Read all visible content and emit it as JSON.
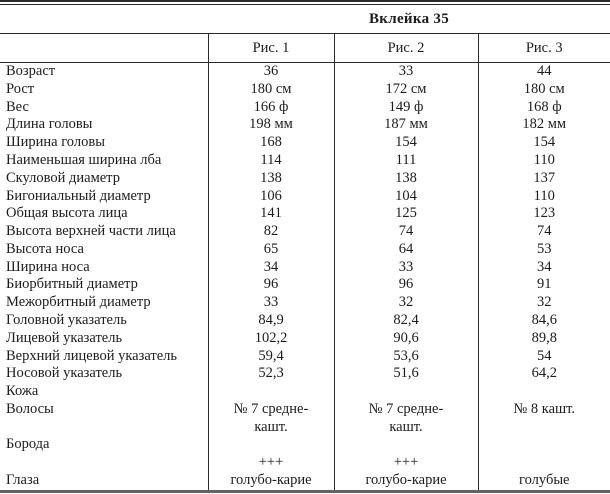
{
  "title": "Вклейка 35",
  "colors": {
    "text": "#1c1c1c",
    "grid_line": "#2b2b2b",
    "bottom_rule": "#636363",
    "background": "#ffffff"
  },
  "table": {
    "col_headers": {
      "fig1": "Рис. 1",
      "fig2": "Рис. 2",
      "fig3": "Рис. 3"
    },
    "rows": [
      {
        "label": "Возраст",
        "fig1": "36",
        "fig2": "33",
        "fig3": "44"
      },
      {
        "label": "Рост",
        "fig1": "180 см",
        "fig2": "172 см",
        "fig3": "180 см"
      },
      {
        "label": "Вес",
        "fig1": "166 ф",
        "fig2": "149 ф",
        "fig3": "168 ф"
      },
      {
        "label": "Длина головы",
        "fig1": "198 мм",
        "fig2": "187 мм",
        "fig3": "182 мм"
      },
      {
        "label": "Ширина головы",
        "fig1": "168",
        "fig2": "154",
        "fig3": "154"
      },
      {
        "label": "Наименьшая ширина лба",
        "fig1": "114",
        "fig2": "111",
        "fig3": "110"
      },
      {
        "label": "Скуловой диаметр",
        "fig1": "138",
        "fig2": "138",
        "fig3": "137"
      },
      {
        "label": "Бигониальный диаметр",
        "fig1": "106",
        "fig2": "104",
        "fig3": "110"
      },
      {
        "label": "Общая высота лица",
        "fig1": "141",
        "fig2": "125",
        "fig3": "123"
      },
      {
        "label": "Высота верхней части лица",
        "fig1": "82",
        "fig2": "74",
        "fig3": "74"
      },
      {
        "label": "Высота носа",
        "fig1": "65",
        "fig2": "64",
        "fig3": "53"
      },
      {
        "label": "Ширина носа",
        "fig1": "34",
        "fig2": "33",
        "fig3": "34"
      },
      {
        "label": "Биорбитный диаметр",
        "fig1": "96",
        "fig2": "96",
        "fig3": "91"
      },
      {
        "label": "Межорбитный диаметр",
        "fig1": "33",
        "fig2": "32",
        "fig3": "32"
      },
      {
        "label": "Головной указатель",
        "fig1": "84,9",
        "fig2": "82,4",
        "fig3": "84,6"
      },
      {
        "label": "Лицевой указатель",
        "fig1": "102,2",
        "fig2": "90,6",
        "fig3": "89,8"
      },
      {
        "label": "Верхний лицевой указатель",
        "fig1": "59,4",
        "fig2": "53,6",
        "fig3": "54"
      },
      {
        "label": "Носовой указатель",
        "fig1": "52,3",
        "fig2": "51,6",
        "fig3": "64,2"
      },
      {
        "label": "Кожа",
        "fig1": "",
        "fig2": "",
        "fig3": ""
      },
      {
        "label": "Волосы",
        "fig1": "№ 7 средне-",
        "fig2": "№ 7 средне-",
        "fig3": "№ 8 кашт."
      },
      {
        "label": "",
        "fig1": "кашт.",
        "fig2": "кашт.",
        "fig3": ""
      },
      {
        "label": "Борода",
        "fig1": "",
        "fig2": "",
        "fig3": ""
      },
      {
        "label": "",
        "fig1": "+++",
        "fig2": "+++",
        "fig3": ""
      },
      {
        "label": "Глаза",
        "fig1": "голубо-карие",
        "fig2": "голубо-карие",
        "fig3": "голубые"
      }
    ]
  }
}
